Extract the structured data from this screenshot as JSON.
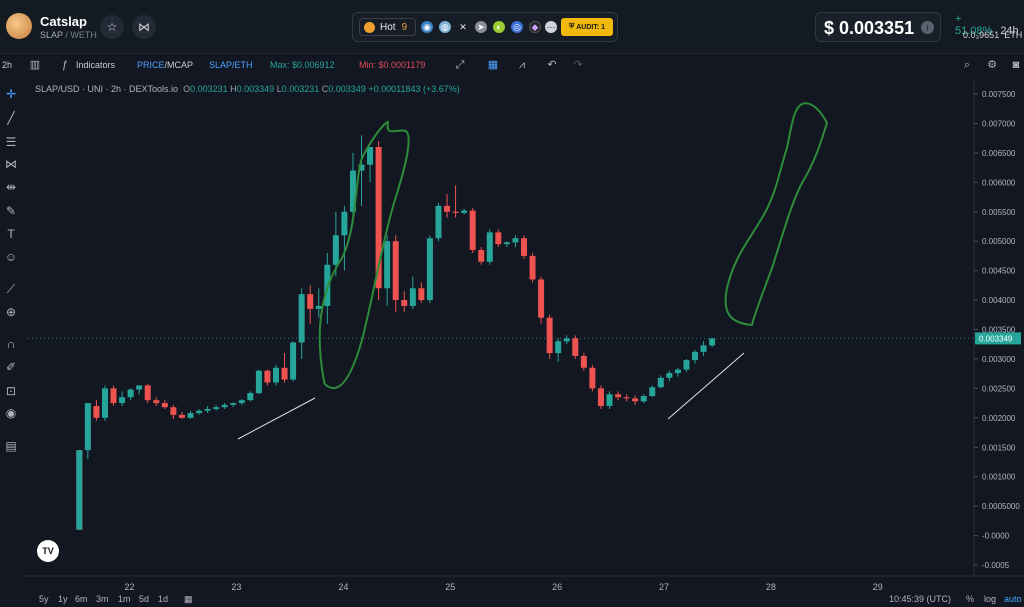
{
  "header": {
    "token_name": "Catslap",
    "token_pair_base": "SLAP",
    "token_pair_quote": "/ WETH",
    "hot_label": "Hot",
    "hot_rank": "9",
    "audit_label": "AUDIT: 1",
    "price": "$ 0.003351",
    "change_pct": "+ 51.08%",
    "change_tf": "24h",
    "eth_price": "0.0₃9651",
    "eth_unit": "ETH",
    "icons": [
      "avatar-logo",
      "star-icon",
      "share-icon",
      "flame-icon",
      "web-icon",
      "x-icon",
      "telegram-icon",
      "coin-icon",
      "info-icon"
    ]
  },
  "toolbar": {
    "interval": "2h",
    "indicators": "Indicators",
    "price_label": "PRICE",
    "mcap_label": "/MCAP",
    "pair_label": "SLAP/ETH",
    "max_label": "Max: $0.006912",
    "min_label": "Min: $0.0001179"
  },
  "legend": {
    "symbol": "SLAP/USD · UNI · 2h · DEXTools.io",
    "o_lab": "O",
    "o": "0.003231",
    "h_lab": "H",
    "h": "0.003349",
    "l_lab": "L",
    "l": "0.003231",
    "c_lab": "C",
    "c": "0.003349",
    "change": "+0.00011843 (+3.67%)"
  },
  "colors": {
    "up": "#26a69a",
    "down": "#ef5350",
    "annotation": "#2e8b3a",
    "bg": "#131722"
  },
  "chart_data": {
    "type": "candlestick",
    "y_ticks": [
      "0.007500",
      "0.007000",
      "0.006500",
      "0.006000",
      "0.005500",
      "0.005000",
      "0.004500",
      "0.004000",
      "0.003500",
      "0.003000",
      "0.002500",
      "0.002000",
      "0.001500",
      "0.001000",
      "0.0005000",
      "-0.0000",
      "-0.0005"
    ],
    "y_tick_values": [
      0.0075,
      0.007,
      0.0065,
      0.006,
      0.0055,
      0.005,
      0.0045,
      0.004,
      0.0035,
      0.003,
      0.0025,
      0.002,
      0.0015,
      0.001,
      0.0005,
      0,
      -0.0005
    ],
    "ylim": [
      -0.0005,
      0.0075
    ],
    "current_price_label": "0.003349",
    "current_price": 0.003349,
    "x_ticks": [
      "22",
      "23",
      "24",
      "25",
      "26",
      "27",
      "28",
      "29"
    ],
    "x_tick_positions": [
      21.95,
      22.95,
      23.95,
      24.95,
      25.95,
      26.95,
      27.95,
      28.95
    ],
    "xlim": [
      21.0,
      29.85
    ],
    "candles": [
      {
        "t": 21.48,
        "o": 0.00145,
        "h": 0.00145,
        "l": 0.0001,
        "c": 0.0001
      },
      {
        "t": 21.48,
        "o": 0.0001,
        "h": 0.00145,
        "l": 0.0001,
        "c": 0.00145
      },
      {
        "t": 21.56,
        "o": 0.00145,
        "h": 0.00225,
        "l": 0.0013,
        "c": 0.00225
      },
      {
        "t": 21.64,
        "o": 0.0022,
        "h": 0.0023,
        "l": 0.00195,
        "c": 0.002
      },
      {
        "t": 21.72,
        "o": 0.002,
        "h": 0.00255,
        "l": 0.00195,
        "c": 0.0025
      },
      {
        "t": 21.8,
        "o": 0.0025,
        "h": 0.00255,
        "l": 0.0022,
        "c": 0.00225
      },
      {
        "t": 21.88,
        "o": 0.00225,
        "h": 0.00245,
        "l": 0.0022,
        "c": 0.00235
      },
      {
        "t": 21.96,
        "o": 0.00235,
        "h": 0.0025,
        "l": 0.0023,
        "c": 0.00248
      },
      {
        "t": 22.04,
        "o": 0.00248,
        "h": 0.00255,
        "l": 0.0024,
        "c": 0.00255
      },
      {
        "t": 22.12,
        "o": 0.00255,
        "h": 0.00258,
        "l": 0.00225,
        "c": 0.0023
      },
      {
        "t": 22.2,
        "o": 0.0023,
        "h": 0.00235,
        "l": 0.0022,
        "c": 0.00225
      },
      {
        "t": 22.28,
        "o": 0.00225,
        "h": 0.0023,
        "l": 0.00215,
        "c": 0.00218
      },
      {
        "t": 22.36,
        "o": 0.00218,
        "h": 0.00222,
        "l": 0.00198,
        "c": 0.00205
      },
      {
        "t": 22.44,
        "o": 0.00205,
        "h": 0.0021,
        "l": 0.00198,
        "c": 0.002
      },
      {
        "t": 22.52,
        "o": 0.002,
        "h": 0.00212,
        "l": 0.00198,
        "c": 0.00208
      },
      {
        "t": 22.6,
        "o": 0.00208,
        "h": 0.00215,
        "l": 0.00205,
        "c": 0.00212
      },
      {
        "t": 22.68,
        "o": 0.00212,
        "h": 0.0022,
        "l": 0.00208,
        "c": 0.00215
      },
      {
        "t": 22.76,
        "o": 0.00215,
        "h": 0.00222,
        "l": 0.00212,
        "c": 0.00218
      },
      {
        "t": 22.84,
        "o": 0.00218,
        "h": 0.00225,
        "l": 0.00215,
        "c": 0.00222
      },
      {
        "t": 22.92,
        "o": 0.00222,
        "h": 0.00226,
        "l": 0.00218,
        "c": 0.00225
      },
      {
        "t": 23.0,
        "o": 0.00225,
        "h": 0.00232,
        "l": 0.00222,
        "c": 0.0023
      },
      {
        "t": 23.08,
        "o": 0.0023,
        "h": 0.00245,
        "l": 0.00228,
        "c": 0.00242
      },
      {
        "t": 23.16,
        "o": 0.00242,
        "h": 0.00282,
        "l": 0.0024,
        "c": 0.0028
      },
      {
        "t": 23.24,
        "o": 0.0028,
        "h": 0.00282,
        "l": 0.00255,
        "c": 0.0026
      },
      {
        "t": 23.32,
        "o": 0.0026,
        "h": 0.0029,
        "l": 0.00255,
        "c": 0.00285
      },
      {
        "t": 23.4,
        "o": 0.00285,
        "h": 0.0031,
        "l": 0.0026,
        "c": 0.00265
      },
      {
        "t": 23.48,
        "o": 0.00265,
        "h": 0.0033,
        "l": 0.00262,
        "c": 0.00328
      },
      {
        "t": 23.56,
        "o": 0.00328,
        "h": 0.0042,
        "l": 0.003,
        "c": 0.0041
      },
      {
        "t": 23.64,
        "o": 0.0041,
        "h": 0.00425,
        "l": 0.0036,
        "c": 0.00385
      },
      {
        "t": 23.72,
        "o": 0.00385,
        "h": 0.0042,
        "l": 0.0037,
        "c": 0.0039
      },
      {
        "t": 23.8,
        "o": 0.0039,
        "h": 0.0048,
        "l": 0.0036,
        "c": 0.0046
      },
      {
        "t": 23.88,
        "o": 0.0046,
        "h": 0.0055,
        "l": 0.0044,
        "c": 0.0051
      },
      {
        "t": 23.96,
        "o": 0.0051,
        "h": 0.0056,
        "l": 0.0045,
        "c": 0.0055
      },
      {
        "t": 24.04,
        "o": 0.0055,
        "h": 0.0065,
        "l": 0.0053,
        "c": 0.0062
      },
      {
        "t": 24.12,
        "o": 0.0062,
        "h": 0.0068,
        "l": 0.0056,
        "c": 0.0063
      },
      {
        "t": 24.2,
        "o": 0.0063,
        "h": 0.0066,
        "l": 0.006,
        "c": 0.0066
      },
      {
        "t": 24.28,
        "o": 0.0066,
        "h": 0.0067,
        "l": 0.004,
        "c": 0.0042
      },
      {
        "t": 24.36,
        "o": 0.0042,
        "h": 0.0051,
        "l": 0.0039,
        "c": 0.005
      },
      {
        "t": 24.44,
        "o": 0.005,
        "h": 0.0051,
        "l": 0.0038,
        "c": 0.004
      },
      {
        "t": 24.52,
        "o": 0.004,
        "h": 0.00415,
        "l": 0.0038,
        "c": 0.0039
      },
      {
        "t": 24.6,
        "o": 0.0039,
        "h": 0.0044,
        "l": 0.00385,
        "c": 0.0042
      },
      {
        "t": 24.68,
        "o": 0.0042,
        "h": 0.0043,
        "l": 0.00395,
        "c": 0.004
      },
      {
        "t": 24.76,
        "o": 0.004,
        "h": 0.0051,
        "l": 0.00395,
        "c": 0.00505
      },
      {
        "t": 24.84,
        "o": 0.00505,
        "h": 0.00565,
        "l": 0.005,
        "c": 0.0056
      },
      {
        "t": 24.92,
        "o": 0.0056,
        "h": 0.0058,
        "l": 0.0054,
        "c": 0.0055
      },
      {
        "t": 25.0,
        "o": 0.0055,
        "h": 0.00595,
        "l": 0.0054,
        "c": 0.00548
      },
      {
        "t": 25.08,
        "o": 0.00548,
        "h": 0.00555,
        "l": 0.00545,
        "c": 0.00552
      },
      {
        "t": 25.16,
        "o": 0.00552,
        "h": 0.00556,
        "l": 0.0048,
        "c": 0.00485
      },
      {
        "t": 25.24,
        "o": 0.00485,
        "h": 0.0049,
        "l": 0.0046,
        "c": 0.00465
      },
      {
        "t": 25.32,
        "o": 0.00465,
        "h": 0.0052,
        "l": 0.0046,
        "c": 0.00515
      },
      {
        "t": 25.4,
        "o": 0.00515,
        "h": 0.0052,
        "l": 0.0049,
        "c": 0.00495
      },
      {
        "t": 25.48,
        "o": 0.00495,
        "h": 0.005,
        "l": 0.0049,
        "c": 0.00498
      },
      {
        "t": 25.56,
        "o": 0.00498,
        "h": 0.0051,
        "l": 0.0049,
        "c": 0.00505
      },
      {
        "t": 25.64,
        "o": 0.00505,
        "h": 0.0051,
        "l": 0.0047,
        "c": 0.00475
      },
      {
        "t": 25.72,
        "o": 0.00475,
        "h": 0.0048,
        "l": 0.0043,
        "c": 0.00435
      },
      {
        "t": 25.8,
        "o": 0.00435,
        "h": 0.0044,
        "l": 0.0036,
        "c": 0.0037
      },
      {
        "t": 25.88,
        "o": 0.0037,
        "h": 0.00375,
        "l": 0.003,
        "c": 0.0031
      },
      {
        "t": 25.96,
        "o": 0.0031,
        "h": 0.00335,
        "l": 0.00295,
        "c": 0.0033
      },
      {
        "t": 26.04,
        "o": 0.0033,
        "h": 0.0034,
        "l": 0.00325,
        "c": 0.00335
      },
      {
        "t": 26.12,
        "o": 0.00335,
        "h": 0.0034,
        "l": 0.003,
        "c": 0.00305
      },
      {
        "t": 26.2,
        "o": 0.00305,
        "h": 0.0031,
        "l": 0.0028,
        "c": 0.00285
      },
      {
        "t": 26.28,
        "o": 0.00285,
        "h": 0.0029,
        "l": 0.00245,
        "c": 0.0025
      },
      {
        "t": 26.36,
        "o": 0.0025,
        "h": 0.00255,
        "l": 0.00215,
        "c": 0.0022
      },
      {
        "t": 26.44,
        "o": 0.0022,
        "h": 0.00245,
        "l": 0.00215,
        "c": 0.0024
      },
      {
        "t": 26.52,
        "o": 0.0024,
        "h": 0.00245,
        "l": 0.0023,
        "c": 0.00235
      },
      {
        "t": 26.6,
        "o": 0.00235,
        "h": 0.0024,
        "l": 0.00228,
        "c": 0.00233
      },
      {
        "t": 26.68,
        "o": 0.00233,
        "h": 0.00238,
        "l": 0.00222,
        "c": 0.00228
      },
      {
        "t": 26.76,
        "o": 0.00228,
        "h": 0.0024,
        "l": 0.00225,
        "c": 0.00237
      },
      {
        "t": 26.84,
        "o": 0.00237,
        "h": 0.00255,
        "l": 0.00235,
        "c": 0.00252
      },
      {
        "t": 26.92,
        "o": 0.00252,
        "h": 0.00272,
        "l": 0.0025,
        "c": 0.00268
      },
      {
        "t": 27.0,
        "o": 0.00268,
        "h": 0.0028,
        "l": 0.00262,
        "c": 0.00276
      },
      {
        "t": 27.08,
        "o": 0.00276,
        "h": 0.00285,
        "l": 0.0027,
        "c": 0.00282
      },
      {
        "t": 27.16,
        "o": 0.00282,
        "h": 0.003,
        "l": 0.00278,
        "c": 0.00298
      },
      {
        "t": 27.24,
        "o": 0.00298,
        "h": 0.00315,
        "l": 0.00292,
        "c": 0.00312
      },
      {
        "t": 27.32,
        "o": 0.00312,
        "h": 0.0033,
        "l": 0.00305,
        "c": 0.00323
      },
      {
        "t": 27.4,
        "o": 0.00323,
        "h": 0.00336,
        "l": 0.0032,
        "c": 0.00335
      }
    ]
  },
  "bottom": {
    "ranges": [
      "5y",
      "1y",
      "6m",
      "3m",
      "1m",
      "5d",
      "1d"
    ],
    "time": "10:45:39 (UTC)",
    "pct": "%",
    "log": "log",
    "auto": "auto"
  }
}
